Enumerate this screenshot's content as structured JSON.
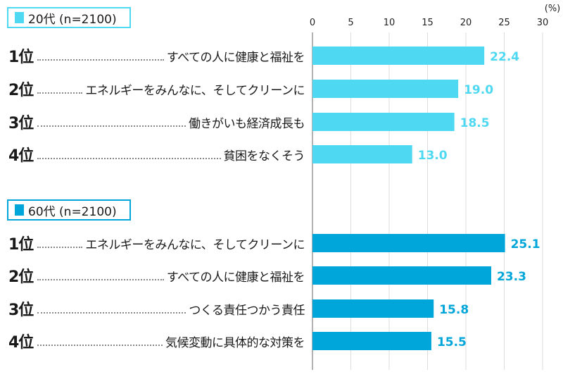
{
  "chart_data": [
    {
      "type": "bar",
      "orientation": "horizontal",
      "legend": "20代 (n=2100)",
      "color": "#4fd8f2",
      "ranks": [
        "1位",
        "2位",
        "3位",
        "4位"
      ],
      "categories": [
        "すべての人に健康と福祉を",
        "エネルギーをみんなに、そしてクリーンに",
        "働きがいも経済成長も",
        "貧困をなくそう"
      ],
      "values": [
        22.4,
        19.0,
        18.5,
        13.0
      ]
    },
    {
      "type": "bar",
      "orientation": "horizontal",
      "legend": "60代 (n=2100)",
      "color": "#00a6d9",
      "ranks": [
        "1位",
        "2位",
        "3位",
        "4位"
      ],
      "categories": [
        "エネルギーをみんなに、そしてクリーンに",
        "すべての人に健康と福祉を",
        "つくる責任つかう責任",
        "気候変動に具体的な対策を"
      ],
      "values": [
        25.1,
        23.3,
        15.8,
        15.5
      ]
    }
  ],
  "axis": {
    "unit": "(%)",
    "xlim": [
      0,
      30
    ],
    "ticks": [
      "0",
      "5",
      "10",
      "15",
      "20",
      "25",
      "30"
    ],
    "grid": true,
    "position": "top"
  }
}
